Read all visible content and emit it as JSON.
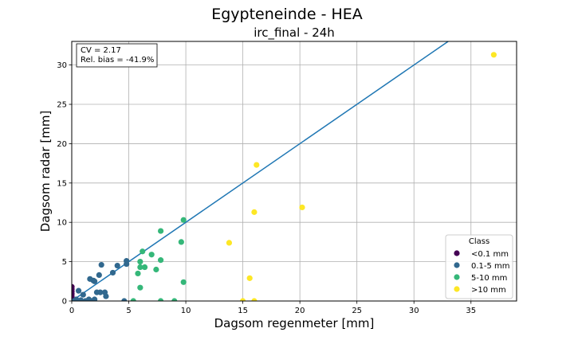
{
  "chart_data": {
    "type": "scatter",
    "title": "Egypteneinde - HEA",
    "subtitle": "irc_final - 24h",
    "xlabel": "Dagsom regenmeter [mm]",
    "ylabel": "Dagsom radar [mm]",
    "xlim": [
      0,
      39
    ],
    "ylim": [
      0,
      33
    ],
    "xticks": [
      0,
      5,
      10,
      15,
      20,
      25,
      30,
      35
    ],
    "yticks": [
      0,
      5,
      10,
      15,
      20,
      25,
      30
    ],
    "grid": true,
    "annotation": [
      "CV = 2.17",
      "Rel. bias = -41.9%"
    ],
    "annotation_placement": "top-left",
    "identity_line": {
      "from": [
        0,
        0
      ],
      "to": [
        33,
        33
      ],
      "color": "#1f77b4"
    },
    "legend": {
      "title": "Class",
      "placement": "lower-right",
      "entries": [
        {
          "label": "<0.1 mm",
          "color": "#440154"
        },
        {
          "label": "0.1-5 mm",
          "color": "#31688e"
        },
        {
          "label": "5-10 mm",
          "color": "#35b779"
        },
        {
          "label": ">10 mm",
          "color": "#fde725"
        }
      ]
    },
    "series": [
      {
        "name": "<0.1 mm",
        "color": "#440154",
        "points": [
          [
            0,
            0
          ],
          [
            0,
            0.3
          ],
          [
            0,
            0.6
          ],
          [
            0,
            0.9
          ],
          [
            0,
            1.2
          ],
          [
            0,
            1.5
          ],
          [
            0,
            1.8
          ]
        ]
      },
      {
        "name": "0.1-5 mm",
        "color": "#31688e",
        "points": [
          [
            0.2,
            0
          ],
          [
            0.4,
            0.2
          ],
          [
            0.6,
            1.3
          ],
          [
            0.8,
            0.1
          ],
          [
            1.0,
            0.8
          ],
          [
            1.2,
            0
          ],
          [
            1.5,
            0.2
          ],
          [
            1.6,
            2.8
          ],
          [
            1.8,
            0
          ],
          [
            1.9,
            2.6
          ],
          [
            2.0,
            2.5
          ],
          [
            2.0,
            0.2
          ],
          [
            2.2,
            1.1
          ],
          [
            2.4,
            3.3
          ],
          [
            2.5,
            1.1
          ],
          [
            2.6,
            4.6
          ],
          [
            2.9,
            1.1
          ],
          [
            3.0,
            0.6
          ],
          [
            3.6,
            3.6
          ],
          [
            4.0,
            4.5
          ],
          [
            4.6,
            0
          ],
          [
            4.8,
            5.1
          ],
          [
            4.8,
            4.7
          ]
        ]
      },
      {
        "name": "5-10 mm",
        "color": "#35b779",
        "points": [
          [
            5.4,
            0
          ],
          [
            5.8,
            3.5
          ],
          [
            6.0,
            1.7
          ],
          [
            6.0,
            4.3
          ],
          [
            6.0,
            5.0
          ],
          [
            6.2,
            6.3
          ],
          [
            6.4,
            4.3
          ],
          [
            7.0,
            5.9
          ],
          [
            7.4,
            4.0
          ],
          [
            7.8,
            8.9
          ],
          [
            7.8,
            5.2
          ],
          [
            7.8,
            0
          ],
          [
            9.0,
            0
          ],
          [
            9.6,
            7.5
          ],
          [
            9.8,
            10.3
          ],
          [
            9.8,
            2.4
          ]
        ]
      },
      {
        "name": ">10 mm",
        "color": "#fde725",
        "points": [
          [
            13.8,
            7.4
          ],
          [
            15.0,
            0
          ],
          [
            15.6,
            2.9
          ],
          [
            16.0,
            0
          ],
          [
            16.0,
            11.3
          ],
          [
            16.2,
            17.3
          ],
          [
            20.2,
            11.9
          ],
          [
            37.0,
            31.3
          ]
        ]
      }
    ]
  }
}
